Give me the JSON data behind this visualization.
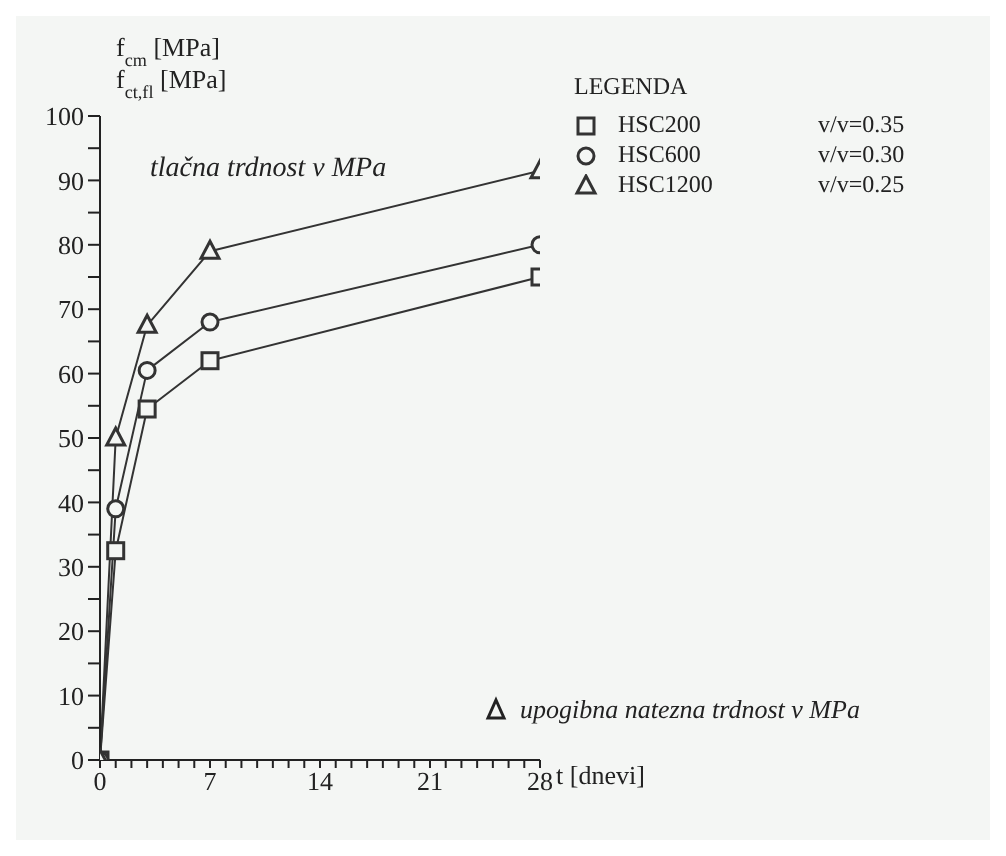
{
  "chart_data": {
    "type": "line",
    "ylabel": "f$_{cm}$ [MPa]\nf$_{ct,fl}$ [MPa]",
    "xlabel": "t [dnevi]",
    "legend_title": "LEGENDA",
    "legend": "top right",
    "grid": false,
    "x": [
      0,
      1,
      3,
      7,
      28
    ],
    "xlim": [
      0,
      28
    ],
    "xticks": [
      0,
      {
        "value": 1,
        "label": null
      },
      {
        "value": 2,
        "label": null
      },
      {
        "value": 3,
        "label": null
      },
      {
        "value": 4,
        "label": null
      },
      {
        "value": 5,
        "label": null
      },
      {
        "value": 6,
        "label": null
      },
      7,
      {
        "value": 8,
        "label": null
      },
      {
        "value": 9,
        "label": null
      },
      {
        "value": 10,
        "label": null
      },
      {
        "value": 11,
        "label": null
      },
      {
        "value": 12,
        "label": null
      },
      {
        "value": 13,
        "label": null
      },
      14,
      {
        "value": 15,
        "label": null
      },
      {
        "value": 16,
        "label": null
      },
      {
        "value": 17,
        "label": null
      },
      {
        "value": 18,
        "label": null
      },
      {
        "value": 19,
        "label": null
      },
      {
        "value": 20,
        "label": null
      },
      21,
      {
        "value": 22,
        "label": null
      },
      {
        "value": 23,
        "label": null
      },
      {
        "value": 24,
        "label": null
      },
      {
        "value": 25,
        "label": null
      },
      {
        "value": 26,
        "label": null
      },
      {
        "value": 27,
        "label": null
      },
      28
    ],
    "ylim": [
      0,
      100
    ],
    "yticks": [
      0,
      {
        "value": 5,
        "label": null
      },
      10,
      {
        "value": 15,
        "label": null
      },
      20,
      {
        "value": 25,
        "label": null
      },
      30,
      {
        "value": 35,
        "label": null
      },
      40,
      {
        "value": 45,
        "label": null
      },
      50,
      {
        "value": 55,
        "label": null
      },
      60,
      {
        "value": 65,
        "label": null
      },
      70,
      {
        "value": 75,
        "label": null
      },
      80,
      {
        "value": 85,
        "label": null
      },
      90,
      {
        "value": 95,
        "label": null
      },
      100
    ],
    "line_style": "solid",
    "series": [
      {
        "name": "HSC200",
        "color": "#333333",
        "marker": "square",
        "values": [
          0,
          32.5,
          54.5,
          62,
          75
        ]
      },
      {
        "name": "HSC600",
        "color": "#333333",
        "marker": "circle",
        "values": [
          0,
          39,
          60.5,
          68,
          80
        ]
      },
      {
        "name": "HSC1200",
        "color": "#333333",
        "marker": "triangle",
        "values": [
          0,
          50,
          67.5,
          79,
          91.5
        ]
      }
    ],
    "annotations": [
      "tlačna trdnost v MPa",
      "v/v=0.35",
      "v/v=0.30",
      "v/v=0.25",
      "upogibna natezna trdnost v MPa"
    ]
  }
}
